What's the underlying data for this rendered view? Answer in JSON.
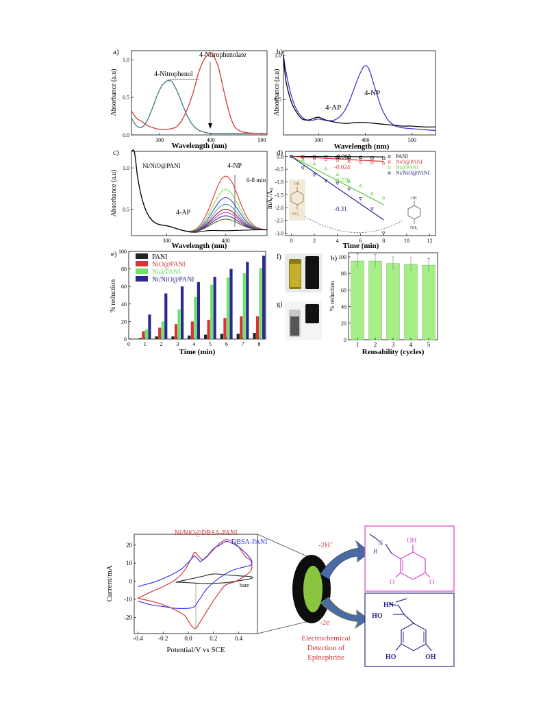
{
  "chart_data": [
    {
      "type": "line",
      "panel_label": "a)",
      "xlabel": "Wavelength (nm)",
      "ylabel": "Absorbance (a.u)",
      "xlim": [
        245,
        510
      ],
      "ylim": [
        0,
        1.12
      ],
      "xticks": [
        "300",
        "400",
        "500"
      ],
      "xtick_values": [
        300,
        400,
        500
      ],
      "yticks": [
        "0.0",
        "0.5",
        "1.0"
      ],
      "ytick_values": [
        0,
        0.5,
        1.0
      ],
      "annotations": [
        "4-Nitrophenol",
        "4-Nitrophenolate"
      ],
      "series": [
        {
          "color": "#3f7878",
          "x": [
            245,
            255,
            265,
            275,
            285,
            295,
            305,
            315,
            320,
            325,
            335,
            345,
            355,
            365,
            375,
            385,
            395,
            405,
            420,
            440,
            470,
            510
          ],
          "y": [
            0.22,
            0.12,
            0.1,
            0.18,
            0.34,
            0.52,
            0.66,
            0.72,
            0.72,
            0.7,
            0.57,
            0.4,
            0.24,
            0.13,
            0.07,
            0.04,
            0.025,
            0.02,
            0.02,
            0.02,
            0.02,
            0.02
          ]
        },
        {
          "color": "#d6343a",
          "x": [
            245,
            255,
            265,
            275,
            290,
            305,
            320,
            335,
            350,
            365,
            375,
            385,
            395,
            400,
            405,
            415,
            425,
            435,
            445,
            455,
            470,
            490,
            510
          ],
          "y": [
            0.32,
            0.22,
            0.18,
            0.13,
            0.09,
            0.07,
            0.08,
            0.12,
            0.28,
            0.55,
            0.8,
            0.98,
            1.07,
            1.09,
            1.06,
            0.9,
            0.6,
            0.32,
            0.13,
            0.06,
            0.03,
            0.02,
            0.02
          ]
        }
      ]
    },
    {
      "type": "line",
      "panel_label": "b)",
      "xlabel": "Wavelength (nm)",
      "ylabel": "Absorbance (a.u)",
      "xlim": [
        225,
        550
      ],
      "ylim": [
        0.1,
        1.05
      ],
      "xticks": [
        "300",
        "400",
        "500"
      ],
      "xtick_values": [
        300,
        400,
        500
      ],
      "yticks": [
        "0.5",
        "1.0"
      ],
      "ytick_values": [
        0.5,
        1.0
      ],
      "annotations": [
        "4-AP",
        "4-NP"
      ],
      "series": [
        {
          "color": "#4036d8",
          "x": [
            225,
            230,
            240,
            250,
            265,
            280,
            290,
            300,
            310,
            320,
            335,
            350,
            365,
            380,
            392,
            400,
            408,
            420,
            435,
            450,
            465,
            480,
            500,
            525,
            550
          ],
          "y": [
            1.0,
            0.82,
            0.58,
            0.42,
            0.3,
            0.26,
            0.27,
            0.28,
            0.27,
            0.26,
            0.27,
            0.33,
            0.47,
            0.68,
            0.83,
            0.88,
            0.84,
            0.64,
            0.4,
            0.26,
            0.2,
            0.18,
            0.17,
            0.16,
            0.15
          ]
        },
        {
          "color": "#000000",
          "x": [
            225,
            230,
            240,
            250,
            265,
            280,
            290,
            300,
            310,
            320,
            340,
            360,
            380,
            400,
            420,
            440,
            460,
            480,
            500,
            525,
            550
          ],
          "y": [
            1.0,
            0.72,
            0.5,
            0.38,
            0.28,
            0.27,
            0.29,
            0.3,
            0.28,
            0.26,
            0.24,
            0.23,
            0.24,
            0.24,
            0.23,
            0.22,
            0.21,
            0.2,
            0.2,
            0.19,
            0.19
          ]
        }
      ]
    },
    {
      "type": "line",
      "panel_label": "c)",
      "xlabel": "Wavelength (nm)",
      "ylabel": "Absorbance (a.u)",
      "xlim": [
        240,
        470
      ],
      "ylim": [
        0.18,
        1.2
      ],
      "xticks": [
        "300",
        "400"
      ],
      "xtick_values": [
        300,
        400
      ],
      "yticks": [
        "0.5",
        "1.0"
      ],
      "ytick_values": [
        0.5,
        1.0
      ],
      "annotations": [
        "Ni/NiO@PANI",
        "4-NP",
        "0-8 min",
        "4-AP"
      ],
      "series": [
        {
          "color": "#d6343a",
          "peak": 0.9
        },
        {
          "color": "#7fe03a",
          "peak": 0.74
        },
        {
          "color": "#3a3ad6",
          "peak": 0.64
        },
        {
          "color": "#3fa0b0",
          "peak": 0.56
        },
        {
          "color": "#8b1a1a",
          "peak": 0.5
        },
        {
          "color": "#b040c0",
          "peak": 0.46
        },
        {
          "color": "#2a2a9a",
          "peak": 0.42
        },
        {
          "color": "#606020",
          "peak": 0.38
        },
        {
          "color": "#000000",
          "peak": 0.24
        }
      ]
    },
    {
      "type": "scatter",
      "panel_label": "d)",
      "xlabel": "Time (min)",
      "ylabel": "lnAt/A0",
      "xlim": [
        -0.5,
        12.5
      ],
      "ylim": [
        -3.1,
        0.2
      ],
      "xticks": [
        "0",
        "2",
        "4",
        "6",
        "8",
        "10",
        "12"
      ],
      "xtick_values": [
        0,
        2,
        4,
        6,
        8,
        10,
        12
      ],
      "yticks": [
        "0.0",
        "-0.5",
        "-1.0",
        "-1.5",
        "-2.0",
        "-2.5",
        "-3.0"
      ],
      "ytick_values": [
        0,
        -0.5,
        -1,
        -1.5,
        -2,
        -2.5,
        -3
      ],
      "series": [
        {
          "name": "PANI",
          "color": "#000000",
          "slope_label": "-0.002",
          "slope": -0.002,
          "x": [
            0,
            1,
            2,
            3,
            4,
            5,
            6,
            7,
            8
          ],
          "y": [
            0,
            -0.01,
            -0.02,
            -0.02,
            -0.03,
            -0.04,
            -0.04,
            -0.05,
            -0.06
          ]
        },
        {
          "name": "NiO@PANI",
          "color": "#d6343a",
          "slope_label": "-0.024",
          "slope": -0.024,
          "x": [
            0,
            1,
            2,
            3,
            4,
            5,
            6,
            7,
            8
          ],
          "y": [
            0,
            -0.05,
            -0.09,
            -0.12,
            -0.15,
            -0.2,
            -0.22,
            -0.25,
            -0.27
          ]
        },
        {
          "name": "Ni@PANI",
          "color": "#5fcf3a",
          "slope_label": "-0.236",
          "slope": -0.236,
          "x": [
            0,
            1,
            2,
            3,
            4,
            5,
            6,
            7,
            8
          ],
          "y": [
            0,
            -0.13,
            -0.28,
            -0.48,
            -0.7,
            -0.98,
            -1.15,
            -1.45,
            -1.62
          ]
        },
        {
          "name": "Ni/NiO@PANI",
          "color": "#26268a",
          "slope_label": "-0.31",
          "slope": -0.31,
          "x": [
            0,
            1,
            2,
            3,
            4,
            5,
            6,
            7,
            8
          ],
          "y": [
            0,
            -0.45,
            -0.72,
            -0.95,
            -1.05,
            -1.28,
            -1.65,
            -2.05,
            -3.0
          ]
        }
      ]
    },
    {
      "type": "bar",
      "panel_label": "e)",
      "xlabel": "Time (min)",
      "ylabel": "% reduction",
      "xlim": [
        0,
        8.4
      ],
      "ylim": [
        0,
        100
      ],
      "xticks": [
        "0",
        "1",
        "2",
        "3",
        "4",
        "5",
        "6",
        "7",
        "8"
      ],
      "xtick_values": [
        0,
        1,
        2,
        3,
        4,
        5,
        6,
        7,
        8
      ],
      "yticks": [
        "0",
        "20",
        "40",
        "60",
        "80",
        "100"
      ],
      "ytick_values": [
        0,
        20,
        40,
        60,
        80,
        100
      ],
      "categories": [
        "1",
        "2",
        "3",
        "4",
        "5",
        "6",
        "7",
        "8"
      ],
      "series": [
        {
          "name": "PANI",
          "color": "#222222",
          "values": [
            1,
            3,
            3,
            4,
            5,
            6,
            6,
            7
          ]
        },
        {
          "name": "NiO@PANI",
          "color": "#d6343a",
          "values": [
            9,
            13,
            17,
            20,
            22,
            24,
            26,
            26
          ]
        },
        {
          "name": "Ni@PANI",
          "color": "#6ee26a",
          "values": [
            11,
            20,
            34,
            48,
            62,
            70,
            75,
            81
          ]
        },
        {
          "name": "Ni/NiO@PANI",
          "color": "#2a2a8e",
          "values": [
            28,
            52,
            60,
            65,
            71,
            80,
            88,
            95
          ]
        }
      ]
    },
    {
      "type": "bar",
      "panel_label": "h)",
      "xlabel": "Reusability (cycles)",
      "ylabel": "% reduction",
      "ylim": [
        0,
        105
      ],
      "yticks": [
        "0",
        "20",
        "40",
        "60",
        "80",
        "100"
      ],
      "ytick_values": [
        0,
        20,
        40,
        60,
        80,
        100
      ],
      "categories": [
        "1",
        "2",
        "3",
        "4",
        "5"
      ],
      "color": "#a6ef86",
      "values": [
        95,
        95,
        92,
        91,
        90
      ],
      "errors": [
        9,
        8,
        8,
        8,
        8
      ]
    },
    {
      "type": "line",
      "xlabel": "Potential/V vs SCE",
      "ylabel": "Current/mA",
      "xlim": [
        -0.43,
        0.55
      ],
      "ylim": [
        -29,
        26
      ],
      "xticks": [
        "-0.4",
        "-0.2",
        "0.0",
        "0.2",
        "0.4"
      ],
      "xtick_values": [
        -0.4,
        -0.2,
        0,
        0.2,
        0.4
      ],
      "yticks": [
        "-20",
        "-10",
        "0",
        "10",
        "20"
      ],
      "ytick_values": [
        -20,
        -10,
        0,
        10,
        20
      ],
      "series": [
        {
          "name": "Ni/NiO@DBSA-PANI",
          "color": "#d6343a",
          "x": [
            -0.4,
            -0.3,
            -0.2,
            -0.1,
            -0.03,
            0.0,
            0.03,
            0.06,
            0.1,
            0.18,
            0.26,
            0.3,
            0.38,
            0.45,
            0.5,
            0.5,
            0.45,
            0.4,
            0.35,
            0.3,
            0.25,
            0.18,
            0.12,
            0.08,
            0.05,
            0.02,
            -0.03,
            -0.1,
            -0.2,
            -0.3,
            -0.4
          ],
          "y": [
            -9.5,
            -11,
            -13,
            -16,
            -19,
            -22,
            -25,
            -26,
            -22,
            -13,
            -5,
            -2,
            0,
            3,
            6,
            11,
            14,
            19,
            22,
            23,
            21,
            16,
            12,
            14,
            16,
            12,
            6,
            1,
            -3,
            -6,
            -9.5
          ]
        },
        {
          "name": "DBSA-PANI",
          "color": "#3a3af0",
          "x": [
            -0.4,
            -0.3,
            -0.2,
            -0.1,
            0.0,
            0.05,
            0.08,
            0.1,
            0.15,
            0.25,
            0.35,
            0.45,
            0.5,
            0.5,
            0.45,
            0.4,
            0.35,
            0.3,
            0.25,
            0.2,
            0.15,
            0.1,
            0.08,
            0.05,
            0.02,
            -0.05,
            -0.15,
            -0.25,
            -0.35,
            -0.4
          ],
          "y": [
            -11,
            -13,
            -14,
            -15,
            -15,
            -14,
            -11,
            -9,
            -4,
            2,
            6,
            8,
            9,
            12,
            16,
            19,
            21,
            22,
            20,
            18,
            14,
            11,
            12,
            14,
            12,
            7,
            3,
            0,
            -2,
            -3
          ]
        },
        {
          "name": "bare",
          "color": "#333333",
          "x": [
            -0.1,
            0.0,
            0.1,
            0.2,
            0.3,
            0.4,
            0.5,
            0.5,
            0.4,
            0.3,
            0.2,
            0.1,
            0.0,
            -0.1
          ],
          "y": [
            -0.5,
            -0.8,
            -1.2,
            -1.2,
            -0.8,
            0.2,
            1.5,
            2.5,
            3.0,
            3.5,
            4.0,
            2.5,
            1.0,
            -0.5
          ]
        }
      ]
    }
  ],
  "labels": {
    "f": "f)",
    "g": "g)",
    "e": "e)",
    "scheme_minus_2h": "-2H",
    "scheme_plus_sup": "+",
    "scheme_minus_2e": "-2e",
    "scheme_minus_sup": "-",
    "scheme_caption_1": "Electrochemical",
    "scheme_caption_2": "Detection of",
    "scheme_caption_3": "Epinephrine",
    "label_oh": "OH",
    "label_no2": "NO",
    "label_nh2": "NH",
    "label_sub2": "2",
    "label_n": "N",
    "label_h": "H",
    "label_hn": "HN",
    "label_ho": "HO",
    "label_o": "O"
  }
}
